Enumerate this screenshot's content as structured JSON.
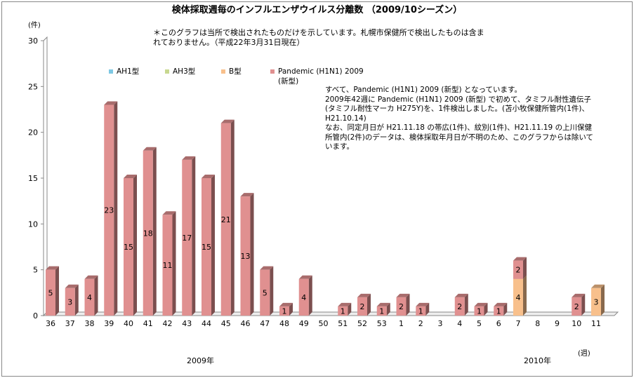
{
  "chart_data": {
    "type": "bar",
    "stacked": true,
    "title": "検体採取週毎のインフルエンザウイルス分離数 （2009/10シーズン）",
    "note": "＊このグラフは当所で検出されたものだけを示しています。札幌市保健所で検出したものは含まれておりません。（平成22年3月31日現在）",
    "ylabel": "(件)",
    "xlabel": "(週)",
    "ylim": [
      0,
      30
    ],
    "yticks": [
      0,
      5,
      10,
      15,
      20,
      25,
      30
    ],
    "year_labels": [
      "2009年",
      "2010年"
    ],
    "categories": [
      "36",
      "37",
      "38",
      "39",
      "40",
      "41",
      "42",
      "43",
      "44",
      "45",
      "46",
      "47",
      "48",
      "49",
      "50",
      "51",
      "52",
      "53",
      "1",
      "2",
      "3",
      "4",
      "5",
      "6",
      "7",
      "8",
      "9",
      "10",
      "11"
    ],
    "series": [
      {
        "name": "AH1型",
        "color": "#7ec8e3",
        "values": [
          0,
          0,
          0,
          0,
          0,
          0,
          0,
          0,
          0,
          0,
          0,
          0,
          0,
          0,
          0,
          0,
          0,
          0,
          0,
          0,
          0,
          0,
          0,
          0,
          0,
          0,
          0,
          0,
          0
        ]
      },
      {
        "name": "AH3型",
        "color": "#c8d890",
        "values": [
          0,
          0,
          0,
          0,
          0,
          0,
          0,
          0,
          0,
          0,
          0,
          0,
          0,
          0,
          0,
          0,
          0,
          0,
          0,
          0,
          0,
          0,
          0,
          0,
          0,
          0,
          0,
          0,
          0
        ]
      },
      {
        "name": "B型",
        "color": "#f8c08c",
        "values": [
          0,
          0,
          0,
          0,
          0,
          0,
          0,
          0,
          0,
          0,
          0,
          0,
          0,
          0,
          0,
          0,
          0,
          0,
          0,
          0,
          0,
          0,
          0,
          0,
          4,
          0,
          0,
          0,
          3
        ]
      },
      {
        "name": "Pandemic (H1N1) 2009\n(新型)",
        "color": "#e09090",
        "values": [
          5,
          3,
          4,
          23,
          15,
          18,
          11,
          17,
          15,
          21,
          13,
          5,
          1,
          4,
          0,
          1,
          2,
          1,
          2,
          1,
          0,
          2,
          1,
          1,
          2,
          0,
          0,
          2,
          0
        ]
      }
    ],
    "legend": "top",
    "annotation": "すべて、Pandemic (H1N1) 2009 (新型) となっています。\n2009年42週に Pandemic (H1N1) 2009 (新型) で初めて、タミフル耐性遺伝子(タミフル耐性マーカ H275Y)を、1件検出しました。(苫小牧保健所管内(1件)、H21.10.14)\nなお、同定月日が H21.11.18 の帯広(1件)、紋別(1件)、H21.11.19 の上川保健所管内(2件)のデータは、検体採取年月日が不明のため、このグラフからは除いています。"
  }
}
